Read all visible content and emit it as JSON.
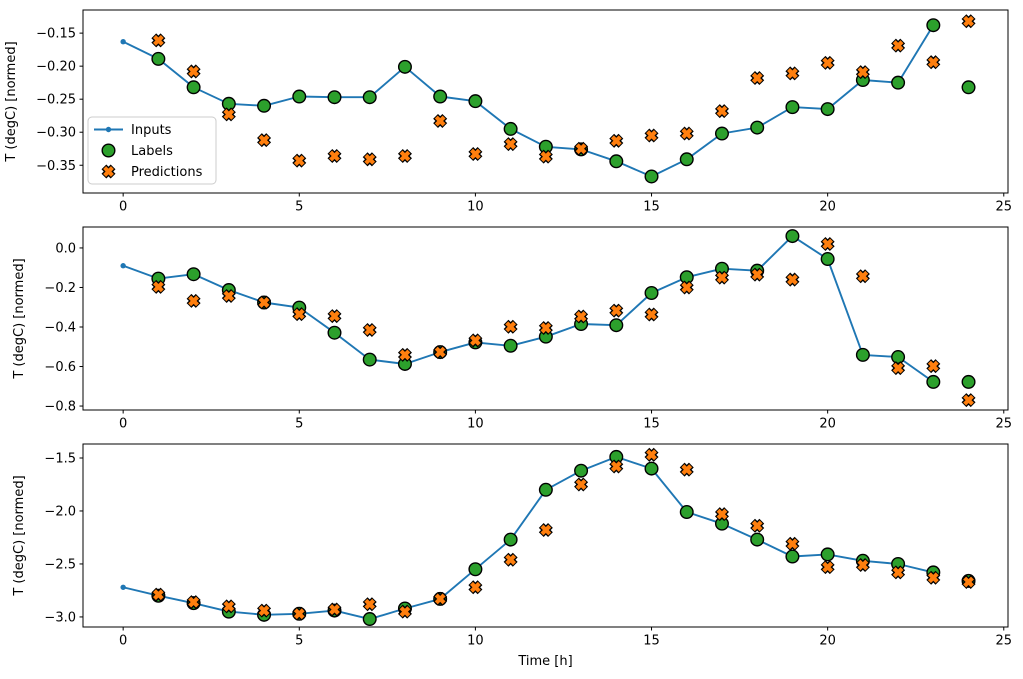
{
  "figure": {
    "background": "#ffffff",
    "spine_color": "#000000",
    "text_color": "#000000"
  },
  "legend": {
    "position": "lower-left-of-first-subplot",
    "border_color": "#cccccc",
    "entries": [
      {
        "label": "Inputs",
        "kind": "line",
        "color": "#1f77b4"
      },
      {
        "label": "Labels",
        "kind": "circle",
        "color": "#2ca02c"
      },
      {
        "label": "Predictions",
        "kind": "x",
        "color": "#ff7f0e"
      }
    ]
  },
  "chart_data": [
    {
      "type": "line",
      "subtype": "line+scatter",
      "title": "",
      "xlabel": "",
      "ylabel": "T (degC) [normed]",
      "grid": false,
      "xlim": [
        -1.14,
        25.12
      ],
      "ylim": [
        -0.392,
        -0.115
      ],
      "xtick_values": [
        0,
        5,
        10,
        15,
        20,
        25
      ],
      "xtick_labels": [
        "0",
        "5",
        "10",
        "15",
        "20",
        "25"
      ],
      "ytick_values": [
        -0.15,
        -0.2,
        -0.25,
        -0.3,
        -0.35
      ],
      "ytick_labels": [
        "−0.15",
        "−0.20",
        "−0.25",
        "−0.30",
        "−0.35"
      ],
      "show_legend": true,
      "series": [
        {
          "name": "Inputs",
          "kind": "line",
          "color": "#1f77b4",
          "x": [
            0,
            1,
            2,
            3,
            4,
            5,
            6,
            7,
            8,
            9,
            10,
            11,
            12,
            13,
            14,
            15,
            16,
            17,
            18,
            19,
            20,
            21,
            22,
            23
          ],
          "y": [
            -0.163,
            -0.189,
            -0.232,
            -0.257,
            -0.26,
            -0.246,
            -0.247,
            -0.247,
            -0.201,
            -0.246,
            -0.253,
            -0.295,
            -0.322,
            -0.326,
            -0.344,
            -0.367,
            -0.341,
            -0.302,
            -0.293,
            -0.262,
            -0.265,
            -0.221,
            -0.225,
            -0.138
          ]
        },
        {
          "name": "Labels",
          "kind": "scatter-circle",
          "color": "#2ca02c",
          "edge_color": "#000000",
          "x": [
            1,
            2,
            3,
            4,
            5,
            6,
            7,
            8,
            9,
            10,
            11,
            12,
            13,
            14,
            15,
            16,
            17,
            18,
            19,
            20,
            21,
            22,
            23,
            24
          ],
          "y": [
            -0.189,
            -0.232,
            -0.257,
            -0.26,
            -0.246,
            -0.247,
            -0.247,
            -0.201,
            -0.246,
            -0.253,
            -0.295,
            -0.322,
            -0.326,
            -0.344,
            -0.367,
            -0.341,
            -0.302,
            -0.293,
            -0.262,
            -0.265,
            -0.221,
            -0.225,
            -0.138,
            -0.232
          ]
        },
        {
          "name": "Predictions",
          "kind": "scatter-x",
          "color": "#ff7f0e",
          "edge_color": "#000000",
          "x": [
            1,
            2,
            3,
            4,
            5,
            6,
            7,
            8,
            9,
            10,
            11,
            12,
            13,
            14,
            15,
            16,
            17,
            18,
            19,
            20,
            21,
            22,
            23,
            24
          ],
          "y": [
            -0.161,
            -0.208,
            -0.273,
            -0.312,
            -0.343,
            -0.336,
            -0.341,
            -0.336,
            -0.283,
            -0.333,
            -0.318,
            -0.337,
            -0.325,
            -0.313,
            -0.305,
            -0.302,
            -0.268,
            -0.218,
            -0.211,
            -0.195,
            -0.209,
            -0.169,
            -0.194,
            -0.132
          ]
        }
      ]
    },
    {
      "type": "line",
      "subtype": "line+scatter",
      "title": "",
      "xlabel": "",
      "ylabel": "T (degC) [normed]",
      "grid": false,
      "xlim": [
        -1.14,
        25.12
      ],
      "ylim": [
        -0.82,
        0.106
      ],
      "xtick_values": [
        0,
        5,
        10,
        15,
        20,
        25
      ],
      "xtick_labels": [
        "0",
        "5",
        "10",
        "15",
        "20",
        "25"
      ],
      "ytick_values": [
        0.0,
        -0.2,
        -0.4,
        -0.6,
        -0.8
      ],
      "ytick_labels": [
        "0.0",
        "−0.2",
        "−0.4",
        "−0.6",
        "−0.8"
      ],
      "show_legend": false,
      "series": [
        {
          "name": "Inputs",
          "kind": "line",
          "color": "#1f77b4",
          "x": [
            0,
            1,
            2,
            3,
            4,
            5,
            6,
            7,
            8,
            9,
            10,
            11,
            12,
            13,
            14,
            15,
            16,
            17,
            18,
            19,
            20,
            21,
            22,
            23
          ],
          "y": [
            -0.09,
            -0.155,
            -0.133,
            -0.213,
            -0.276,
            -0.302,
            -0.429,
            -0.565,
            -0.587,
            -0.527,
            -0.478,
            -0.495,
            -0.449,
            -0.385,
            -0.391,
            -0.228,
            -0.148,
            -0.105,
            -0.115,
            0.06,
            -0.056,
            -0.541,
            -0.552,
            -0.678
          ]
        },
        {
          "name": "Labels",
          "kind": "scatter-circle",
          "color": "#2ca02c",
          "edge_color": "#000000",
          "x": [
            1,
            2,
            3,
            4,
            5,
            6,
            7,
            8,
            9,
            10,
            11,
            12,
            13,
            14,
            15,
            16,
            17,
            18,
            19,
            20,
            21,
            22,
            23,
            24
          ],
          "y": [
            -0.155,
            -0.133,
            -0.213,
            -0.276,
            -0.302,
            -0.429,
            -0.565,
            -0.587,
            -0.527,
            -0.478,
            -0.495,
            -0.449,
            -0.385,
            -0.391,
            -0.228,
            -0.148,
            -0.105,
            -0.115,
            0.06,
            -0.056,
            -0.541,
            -0.552,
            -0.678,
            -0.678
          ]
        },
        {
          "name": "Predictions",
          "kind": "scatter-x",
          "color": "#ff7f0e",
          "edge_color": "#000000",
          "x": [
            1,
            2,
            3,
            4,
            5,
            6,
            7,
            8,
            9,
            10,
            11,
            12,
            13,
            14,
            15,
            16,
            17,
            18,
            19,
            20,
            21,
            22,
            23,
            24
          ],
          "y": [
            -0.197,
            -0.268,
            -0.243,
            -0.276,
            -0.335,
            -0.345,
            -0.415,
            -0.541,
            -0.527,
            -0.468,
            -0.399,
            -0.405,
            -0.347,
            -0.317,
            -0.337,
            -0.2,
            -0.15,
            -0.135,
            -0.16,
            0.02,
            -0.143,
            -0.608,
            -0.598,
            -0.77
          ]
        }
      ]
    },
    {
      "type": "line",
      "subtype": "line+scatter",
      "title": "",
      "xlabel": "Time [h]",
      "ylabel": "T (degC) [normed]",
      "grid": false,
      "xlim": [
        -1.14,
        25.12
      ],
      "ylim": [
        -3.095,
        -1.368
      ],
      "xtick_values": [
        0,
        5,
        10,
        15,
        20,
        25
      ],
      "xtick_labels": [
        "0",
        "5",
        "10",
        "15",
        "20",
        "25"
      ],
      "ytick_values": [
        -1.5,
        -2.0,
        -2.5,
        -3.0
      ],
      "ytick_labels": [
        "−1.5",
        "−2.0",
        "−2.5",
        "−3.0"
      ],
      "show_legend": false,
      "series": [
        {
          "name": "Inputs",
          "kind": "line",
          "color": "#1f77b4",
          "x": [
            0,
            1,
            2,
            3,
            4,
            5,
            6,
            7,
            8,
            9,
            10,
            11,
            12,
            13,
            14,
            15,
            16,
            17,
            18,
            19,
            20,
            21,
            22,
            23
          ],
          "y": [
            -2.72,
            -2.8,
            -2.87,
            -2.95,
            -2.98,
            -2.97,
            -2.94,
            -3.02,
            -2.92,
            -2.83,
            -2.55,
            -2.27,
            -1.8,
            -1.62,
            -1.49,
            -1.6,
            -2.01,
            -2.12,
            -2.27,
            -2.43,
            -2.41,
            -2.47,
            -2.5,
            -2.58
          ]
        },
        {
          "name": "Labels",
          "kind": "scatter-circle",
          "color": "#2ca02c",
          "edge_color": "#000000",
          "x": [
            1,
            2,
            3,
            4,
            5,
            6,
            7,
            8,
            9,
            10,
            11,
            12,
            13,
            14,
            15,
            16,
            17,
            18,
            19,
            20,
            21,
            22,
            23,
            24
          ],
          "y": [
            -2.8,
            -2.87,
            -2.95,
            -2.98,
            -2.97,
            -2.94,
            -3.02,
            -2.92,
            -2.83,
            -2.55,
            -2.27,
            -1.8,
            -1.62,
            -1.49,
            -1.6,
            -2.01,
            -2.12,
            -2.27,
            -2.43,
            -2.41,
            -2.47,
            -2.5,
            -2.58,
            -2.66
          ]
        },
        {
          "name": "Predictions",
          "kind": "scatter-x",
          "color": "#ff7f0e",
          "edge_color": "#000000",
          "x": [
            1,
            2,
            3,
            4,
            5,
            6,
            7,
            8,
            9,
            10,
            11,
            12,
            13,
            14,
            15,
            16,
            17,
            18,
            19,
            20,
            21,
            22,
            23,
            24
          ],
          "y": [
            -2.79,
            -2.86,
            -2.9,
            -2.94,
            -2.97,
            -2.93,
            -2.88,
            -2.95,
            -2.83,
            -2.72,
            -2.46,
            -2.18,
            -1.75,
            -1.58,
            -1.47,
            -1.61,
            -2.03,
            -2.14,
            -2.31,
            -2.53,
            -2.51,
            -2.58,
            -2.63,
            -2.67
          ]
        }
      ]
    }
  ]
}
